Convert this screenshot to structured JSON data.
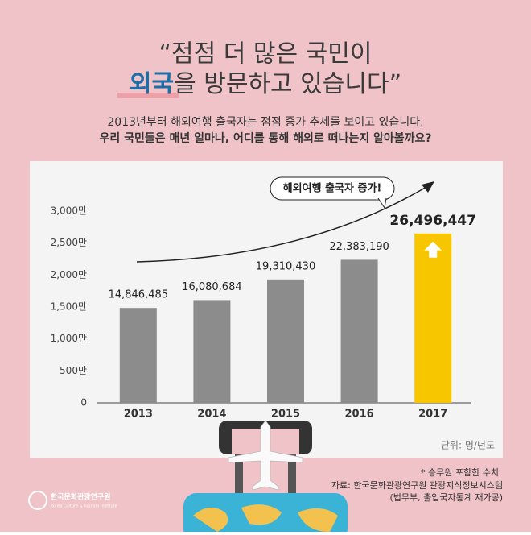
{
  "chart_data": {
    "type": "bar",
    "title_line1": "“점점 더 많은 국민이",
    "title_highlight": "외국",
    "title_line2": "을 방문하고 있습니다”",
    "subtitle_line1": "2013년부터 해외여행 출국자는 점점 증가 추세를 보이고 있습니다.",
    "subtitle_line2": "우리 국민들은 매년 얼마나, 어디를 통해 해외로 떠나는지 알아볼까요?",
    "annotation": "해외여행 출국자 증가!",
    "categories": [
      "2013",
      "2014",
      "2015",
      "2016",
      "2017"
    ],
    "values": [
      14846485,
      16080684,
      19310430,
      22383190,
      26496447
    ],
    "value_labels": [
      "14,846,485",
      "16,080,684",
      "19,310,430",
      "22,383,190",
      "26,496,447"
    ],
    "colors": [
      "#8c8c8c",
      "#8c8c8c",
      "#8c8c8c",
      "#8c8c8c",
      "#f7c600"
    ],
    "ylim": [
      0,
      30000000
    ],
    "yticks": [
      0,
      {
        "value": 5000000,
        "label": "500만"
      },
      {
        "value": 10000000,
        "label": "1,000만"
      },
      {
        "value": 15000000,
        "label": "1,500만"
      },
      {
        "value": 20000000,
        "label": "2,000만"
      },
      {
        "value": 25000000,
        "label": "2,500만"
      },
      {
        "value": 30000000,
        "label": "3,000만"
      }
    ],
    "grid": false,
    "unit": "단위: 명/년도",
    "footnote": "* 승무원 포함한 수치",
    "source_line1": "자료: 한국문화관광연구원 관광지식정보시스템",
    "source_line2": "(법무부, 출입국자통계 재가공)",
    "logo_name": "한국문화관광연구원",
    "logo_english": "Korea Culture & Tourism Institute"
  }
}
